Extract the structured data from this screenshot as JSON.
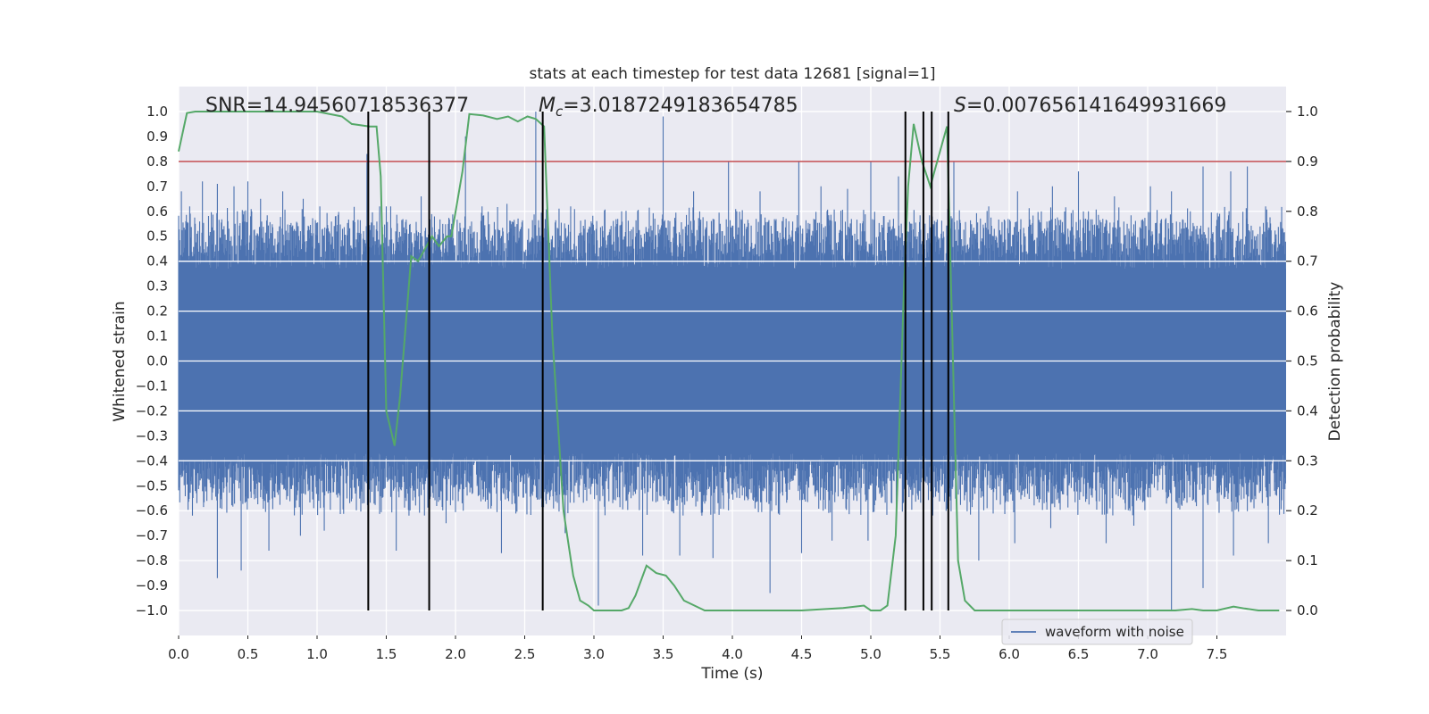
{
  "chart_data": {
    "type": "line",
    "title": "stats at each timestep for test data 12681 [signal=1]",
    "xlabel": "Time (s)",
    "ylabel": "Whitened strain",
    "ylabel_right": "Detection probability",
    "xlim": [
      0.0,
      8.0
    ],
    "ylim": [
      -1.1,
      1.1
    ],
    "ylim_right": [
      -0.05,
      1.05
    ],
    "xticks": [
      0.0,
      0.5,
      1.0,
      1.5,
      2.0,
      2.5,
      3.0,
      3.5,
      4.0,
      4.5,
      5.0,
      5.5,
      6.0,
      6.5,
      7.0,
      7.5
    ],
    "xtick_labels": [
      "0.0",
      "0.5",
      "1.0",
      "1.5",
      "2.0",
      "2.5",
      "3.0",
      "3.5",
      "4.0",
      "4.5",
      "5.0",
      "5.5",
      "6.0",
      "6.5",
      "7.0",
      "7.5"
    ],
    "yticks": [
      1.0,
      0.9,
      0.8,
      0.7,
      0.6,
      0.5,
      0.4,
      0.3,
      0.2,
      0.1,
      0.0,
      -0.1,
      -0.2,
      -0.3,
      -0.4,
      -0.5,
      -0.6,
      -0.7,
      -0.8,
      -0.9,
      -1.0
    ],
    "ytick_labels": [
      "1.0",
      "0.9",
      "0.8",
      "0.7",
      "0.6",
      "0.5",
      "0.4",
      "0.3",
      "0.2",
      "0.1",
      "0.0",
      "−0.1",
      "−0.2",
      "−0.3",
      "−0.4",
      "−0.5",
      "−0.6",
      "−0.7",
      "−0.8",
      "−0.9",
      "−1.0"
    ],
    "yticks_right": [
      1.0,
      0.9,
      0.8,
      0.7,
      0.6,
      0.5,
      0.4,
      0.3,
      0.2,
      0.1,
      0.0
    ],
    "ytick_labels_right": [
      "1.0",
      "0.9",
      "0.8",
      "0.7",
      "0.6",
      "0.5",
      "0.4",
      "0.3",
      "0.2",
      "0.1",
      "0.0"
    ],
    "annotations": {
      "snr": "SNR=14.94560718536377",
      "mc_symbol": "M",
      "mc_sub": "c",
      "mc_value": "=3.0187249183654785",
      "s_symbol": "S",
      "s_value": "=0.007656141649931669"
    },
    "legend": {
      "label": "waveform with noise",
      "location": "lower-right"
    },
    "threshold": {
      "value": 0.8,
      "axis": "left",
      "color": "#c44e52"
    },
    "vlines": [
      1.37,
      1.81,
      2.63,
      5.25,
      5.38,
      5.44,
      5.56
    ],
    "colors": {
      "strain": "#4c72b0",
      "probability": "#55a868",
      "vline": "#000000",
      "plot_bg": "#eaeaf2",
      "grid": "#ffffff"
    },
    "waveform": {
      "description_free": true,
      "peaks_up": [
        [
          0.02,
          0.68
        ],
        [
          0.08,
          0.62
        ],
        [
          0.12,
          0.55
        ],
        [
          0.17,
          0.72
        ],
        [
          0.28,
          0.71
        ],
        [
          0.4,
          0.7
        ],
        [
          0.5,
          0.72
        ],
        [
          0.59,
          0.65
        ],
        [
          0.75,
          0.68
        ],
        [
          0.9,
          0.65
        ],
        [
          1.02,
          0.62
        ],
        [
          1.13,
          0.58
        ],
        [
          1.36,
          0.83
        ],
        [
          1.5,
          0.62
        ],
        [
          1.75,
          0.66
        ],
        [
          2.07,
          0.9
        ],
        [
          2.19,
          0.62
        ],
        [
          2.37,
          0.63
        ],
        [
          2.58,
          1.0
        ],
        [
          2.83,
          0.62
        ],
        [
          3.2,
          0.6
        ],
        [
          3.5,
          0.98
        ],
        [
          3.72,
          0.68
        ],
        [
          3.97,
          0.8
        ],
        [
          4.2,
          0.68
        ],
        [
          4.48,
          0.8
        ],
        [
          4.64,
          0.7
        ],
        [
          4.83,
          0.69
        ],
        [
          5.0,
          0.8
        ],
        [
          5.2,
          0.74
        ],
        [
          5.6,
          0.8
        ],
        [
          5.85,
          0.62
        ],
        [
          6.06,
          0.68
        ],
        [
          6.31,
          0.7
        ],
        [
          6.5,
          0.76
        ],
        [
          6.76,
          0.66
        ],
        [
          7.02,
          0.7
        ],
        [
          7.17,
          0.68
        ],
        [
          7.4,
          0.78
        ],
        [
          7.6,
          0.76
        ],
        [
          7.72,
          0.78
        ],
        [
          7.85,
          0.62
        ]
      ],
      "peaks_down": [
        [
          0.1,
          -0.62
        ],
        [
          0.28,
          -0.87
        ],
        [
          0.45,
          -0.84
        ],
        [
          0.65,
          -0.76
        ],
        [
          0.88,
          -0.7
        ],
        [
          1.05,
          -0.68
        ],
        [
          1.57,
          -0.76
        ],
        [
          1.93,
          -0.65
        ],
        [
          2.33,
          -0.77
        ],
        [
          2.79,
          -0.69
        ],
        [
          3.03,
          -0.98
        ],
        [
          3.35,
          -0.78
        ],
        [
          3.62,
          -0.78
        ],
        [
          3.86,
          -0.79
        ],
        [
          4.27,
          -0.93
        ],
        [
          4.5,
          -0.77
        ],
        [
          4.72,
          -0.72
        ],
        [
          4.98,
          -0.72
        ],
        [
          5.25,
          -0.73
        ],
        [
          5.78,
          -0.8
        ],
        [
          6.04,
          -0.73
        ],
        [
          6.3,
          -0.67
        ],
        [
          6.7,
          -0.73
        ],
        [
          6.9,
          -0.66
        ],
        [
          7.17,
          -1.0
        ],
        [
          7.4,
          -0.91
        ],
        [
          7.62,
          -0.78
        ],
        [
          7.87,
          -0.73
        ]
      ]
    },
    "probability": {
      "x": [
        0.0,
        0.06,
        0.12,
        0.5,
        1.0,
        1.18,
        1.25,
        1.38,
        1.43,
        1.46,
        1.5,
        1.56,
        1.6,
        1.68,
        1.73,
        1.77,
        1.83,
        1.88,
        1.94,
        1.97,
        2.05,
        2.1,
        2.2,
        2.3,
        2.38,
        2.45,
        2.52,
        2.58,
        2.64,
        2.7,
        2.78,
        2.85,
        2.9,
        2.96,
        3.0,
        3.1,
        3.2,
        3.25,
        3.3,
        3.38,
        3.45,
        3.52,
        3.58,
        3.65,
        3.8,
        4.0,
        4.3,
        4.5,
        4.8,
        4.95,
        5.0,
        5.07,
        5.12,
        5.18,
        5.24,
        5.27,
        5.31,
        5.37,
        5.43,
        5.47,
        5.52,
        5.55,
        5.58,
        5.63,
        5.68,
        5.75,
        6.0,
        6.5,
        7.0,
        7.2,
        7.32,
        7.4,
        7.5,
        7.62,
        7.7,
        7.8,
        7.95
      ],
      "y": [
        0.92,
        0.997,
        1.0,
        1.0,
        1.0,
        0.99,
        0.975,
        0.97,
        0.97,
        0.87,
        0.4,
        0.33,
        0.43,
        0.71,
        0.7,
        0.72,
        0.75,
        0.73,
        0.75,
        0.75,
        0.88,
        0.995,
        0.992,
        0.985,
        0.99,
        0.98,
        0.99,
        0.985,
        0.97,
        0.55,
        0.2,
        0.07,
        0.02,
        0.01,
        0.0,
        0.0,
        0.0,
        0.005,
        0.03,
        0.09,
        0.075,
        0.07,
        0.05,
        0.02,
        0.0,
        0.0,
        0.0,
        0.0,
        0.005,
        0.01,
        0.0,
        0.0,
        0.01,
        0.15,
        0.65,
        0.85,
        0.975,
        0.9,
        0.85,
        0.89,
        0.94,
        0.97,
        0.65,
        0.1,
        0.02,
        0.0,
        0.0,
        0.0,
        0.0,
        0.0,
        0.003,
        0.0,
        0.0,
        0.008,
        0.004,
        0.0,
        0.0
      ]
    }
  }
}
